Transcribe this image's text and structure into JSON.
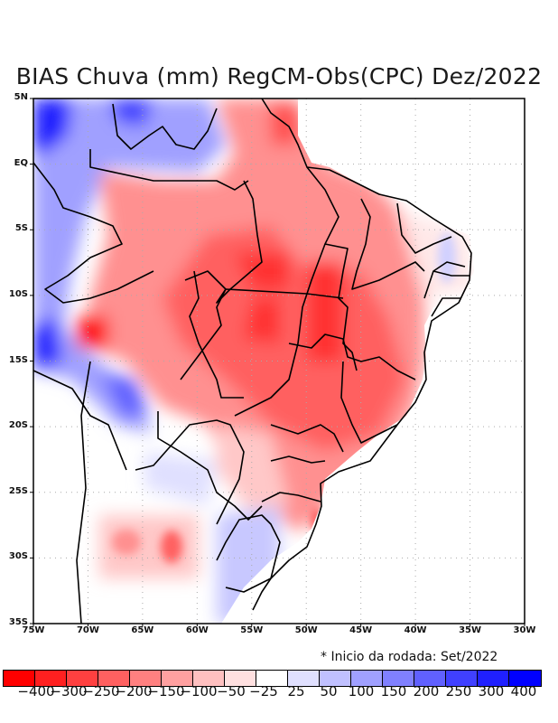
{
  "title": "BIAS Chuva (mm) RegCM-Obs(CPC) Dez/2022",
  "note": "* Inicio da rodada: Set/2022",
  "map": {
    "lon_range": [
      -75,
      -30
    ],
    "lat_range": [
      -35,
      5
    ],
    "lat_labels": [
      "5N",
      "EQ",
      "5S",
      "10S",
      "15S",
      "20S",
      "25S",
      "30S",
      "35S"
    ],
    "lon_labels": [
      "75W",
      "70W",
      "65W",
      "60W",
      "55W",
      "50W",
      "45W",
      "40W",
      "35W",
      "30W"
    ]
  },
  "colorbar": {
    "colors": [
      "#ff0000",
      "#ff2020",
      "#ff4040",
      "#ff6060",
      "#ff8080",
      "#ffa0a0",
      "#ffc0c0",
      "#ffe0e0",
      "#ffffff",
      "#e0e0ff",
      "#c0c0ff",
      "#a0a0ff",
      "#8080ff",
      "#6060ff",
      "#4040ff",
      "#2020ff",
      "#0000ff"
    ],
    "labels": [
      "-400",
      "-300",
      "-250",
      "-200",
      "-150",
      "-100",
      "-50",
      "-25",
      "25",
      "50",
      "100",
      "150",
      "200",
      "250",
      "300",
      "400"
    ]
  }
}
